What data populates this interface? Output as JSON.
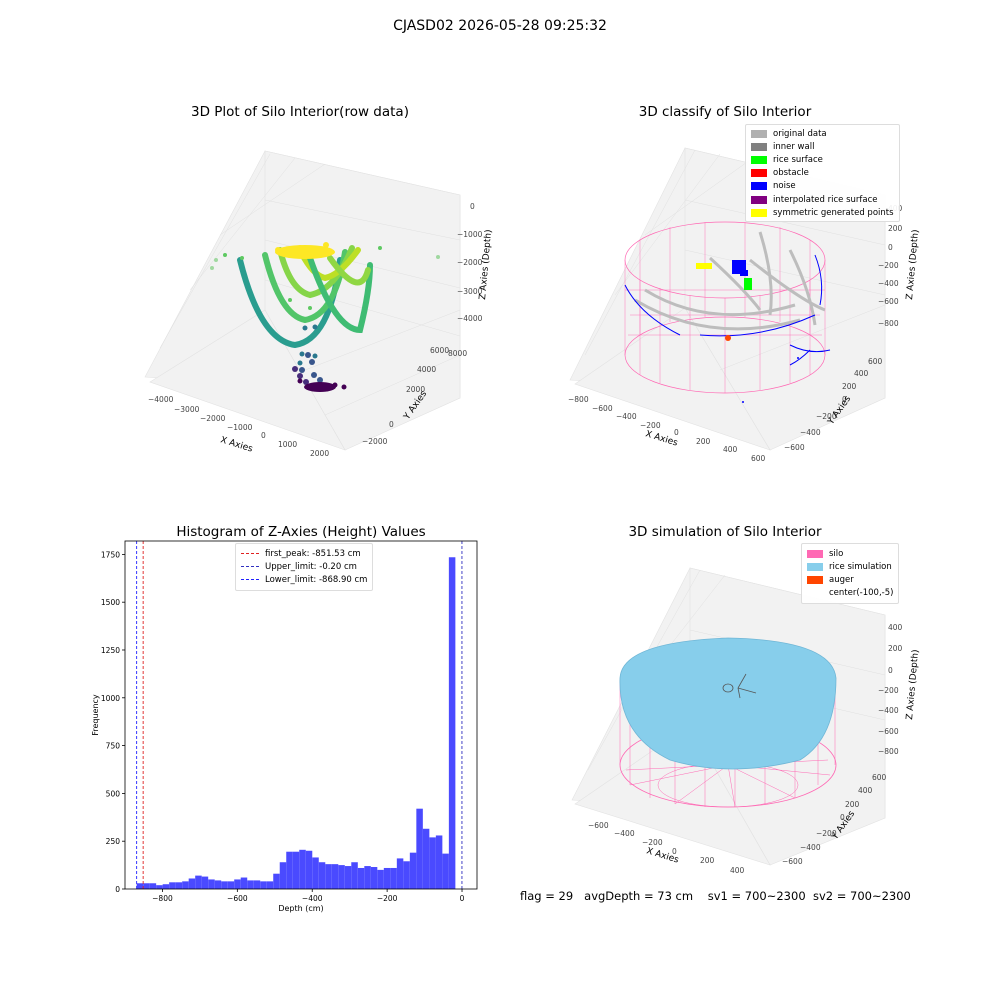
{
  "suptitle": "CJASD02 2026-05-28 09:25:32",
  "footer": {
    "flag": "flag = 29",
    "avg_depth": "avgDepth = 73 cm",
    "sv1": "sv1 = 700~2300",
    "sv2": "sv2 = 700~2300"
  },
  "colors": {
    "histogram_bar": "#4a4aff",
    "first_peak": "#e02020",
    "upper_limit": "#3030c0",
    "lower_limit": "#2020ff",
    "silo": "#ff69b4",
    "rice_simulation": "#87ceeb",
    "auger": "#ff4500",
    "original_data": "#b0b0b0",
    "inner_wall": "#808080",
    "rice_surface": "#00ff00",
    "obstacle": "#ff0000",
    "noise": "#0000ff",
    "interpolated_rice_surface": "#800080",
    "symmetric_generated_points": "#ffff00"
  },
  "chart_data": [
    {
      "type": "scatter",
      "title": "3D Plot of Silo Interior(row data)",
      "xlabel": "X Axies",
      "ylabel": "Y Axies",
      "zlabel": "Z Axies (Depth)",
      "x_ticks": [
        "−4000",
        "−3000",
        "−2000",
        "−1000",
        "0",
        "1000",
        "2000"
      ],
      "y_ticks": [
        "−2000",
        "0",
        "2000",
        "4000",
        "6000",
        "8000"
      ],
      "z_ticks": [
        "−4000",
        "−3000",
        "−2000",
        "−1000",
        "0"
      ],
      "colormap": "viridis"
    },
    {
      "type": "scatter",
      "title": "3D classify of Silo Interior",
      "xlabel": "X Axies",
      "ylabel": "Y Axies",
      "zlabel": "Z Axies (Depth)",
      "x_ticks": [
        "−800",
        "−600",
        "−400",
        "−200",
        "0",
        "200",
        "400",
        "600"
      ],
      "y_ticks": [
        "−600",
        "−400",
        "−200",
        "0",
        "200",
        "400",
        "600"
      ],
      "z_ticks": [
        "−800",
        "−600",
        "−400",
        "−200",
        "0",
        "200",
        "400"
      ],
      "legend": [
        "original data",
        "inner wall",
        "rice surface",
        "obstacle",
        "noise",
        "interpolated rice surface",
        "symmetric generated points"
      ],
      "legend_position": "top-right"
    },
    {
      "type": "bar",
      "title": "Histogram of Z-Axies (Height) Values",
      "xlabel": "Depth (cm)",
      "ylabel": "Frequency",
      "xlim": [
        -900,
        40
      ],
      "ylim": [
        0,
        1820
      ],
      "x_ticks": [
        -800,
        -600,
        -400,
        -200,
        0
      ],
      "x_tick_labels": [
        "−800",
        "−600",
        "−400",
        "−200",
        "0"
      ],
      "y_ticks": [
        0,
        250,
        500,
        750,
        1000,
        1250,
        1500,
        1750
      ],
      "bin_edges_start": -868.9,
      "bin_width": 17.37,
      "values": [
        30,
        30,
        30,
        20,
        25,
        35,
        35,
        40,
        55,
        70,
        65,
        50,
        45,
        40,
        40,
        50,
        60,
        45,
        45,
        40,
        40,
        80,
        140,
        195,
        195,
        205,
        200,
        165,
        140,
        130,
        130,
        125,
        120,
        140,
        110,
        120,
        115,
        100,
        110,
        110,
        160,
        145,
        190,
        420,
        315,
        270,
        280,
        185,
        1735
      ],
      "vlines": [
        {
          "label": "first_peak: -851.53 cm",
          "x": -851.53,
          "color_key": "first_peak"
        },
        {
          "label": "Upper_limit: -0.20 cm",
          "x": -0.2,
          "color_key": "upper_limit"
        },
        {
          "label": "Lower_limit: -868.90 cm",
          "x": -868.9,
          "color_key": "lower_limit"
        }
      ],
      "legend_position": "top-center"
    },
    {
      "type": "scatter",
      "title": "3D simulation of Silo Interior",
      "xlabel": "X Axies",
      "ylabel": "Y Axies",
      "zlabel": "Z Axies (Depth)",
      "x_ticks": [
        "−600",
        "−400",
        "−200",
        "0",
        "200",
        "400"
      ],
      "y_ticks": [
        "−600",
        "−400",
        "−200",
        "0",
        "200",
        "400",
        "600"
      ],
      "z_ticks": [
        "−800",
        "−600",
        "−400",
        "−200",
        "0",
        "200",
        "400"
      ],
      "legend": [
        "silo",
        "rice simulation",
        "auger",
        "center(-100,-5)"
      ],
      "legend_position": "top-right"
    }
  ]
}
